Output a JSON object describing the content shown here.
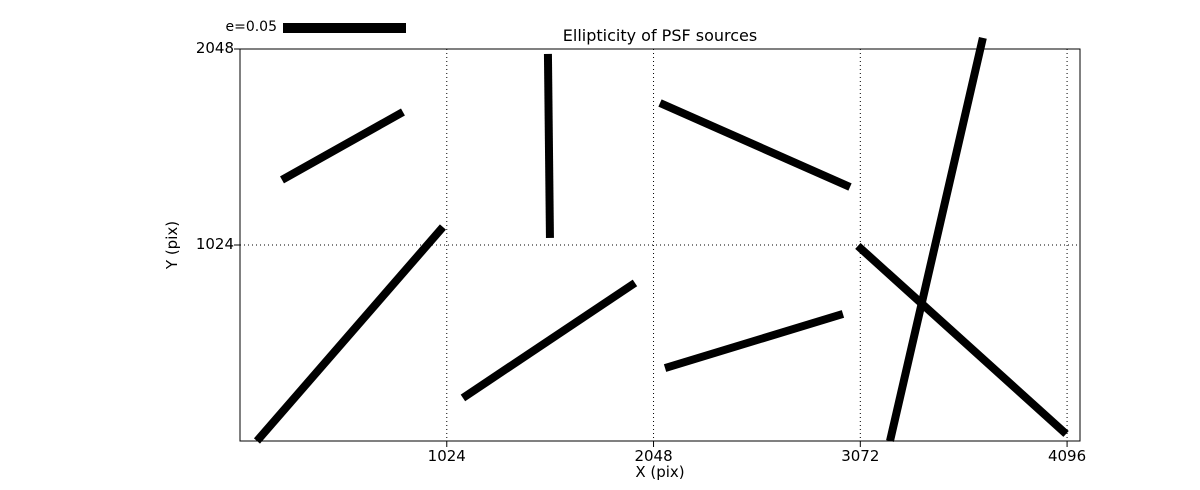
{
  "figure": {
    "title": "Ellipticity of PSF sources",
    "xlabel": "X (pix)",
    "ylabel": "Y (pix)",
    "legend": {
      "label": "e=0.05"
    },
    "colors": {
      "foreground": "#000000",
      "background": "#ffffff"
    }
  },
  "chart_data": {
    "type": "line",
    "subtype": "ellipticity-whisker-plot",
    "title": "Ellipticity of PSF sources",
    "xlabel": "X (pix)",
    "ylabel": "Y (pix)",
    "xlim": [
      0,
      4160
    ],
    "ylim": [
      0,
      2048
    ],
    "xticks": [
      1024,
      2048,
      3072,
      4096
    ],
    "yticks": [
      1024,
      2048
    ],
    "grid": "dotted",
    "legend": {
      "label": "e=0.05",
      "position": "top-left-above-axes"
    },
    "series_description": "Thick black whisker segments showing PSF ellipticity; endpoints in data units (pix)",
    "whisker_stroke_data_color": "#000000",
    "segments": [
      {
        "x1": 208,
        "y1": 1364,
        "x2": 807,
        "y2": 1719
      },
      {
        "x1": 1525,
        "y1": 2022,
        "x2": 1535,
        "y2": 1061
      },
      {
        "x1": 2080,
        "y1": 1766,
        "x2": 3021,
        "y2": 1327
      },
      {
        "x1": 3679,
        "y1": 2106,
        "x2": 3219,
        "y2": 0
      },
      {
        "x1": 84,
        "y1": 0,
        "x2": 1005,
        "y2": 1118
      },
      {
        "x1": 1104,
        "y1": 225,
        "x2": 1956,
        "y2": 826
      },
      {
        "x1": 2105,
        "y1": 381,
        "x2": 2986,
        "y2": 664
      },
      {
        "x1": 3060,
        "y1": 1019,
        "x2": 4091,
        "y2": 37
      }
    ]
  }
}
